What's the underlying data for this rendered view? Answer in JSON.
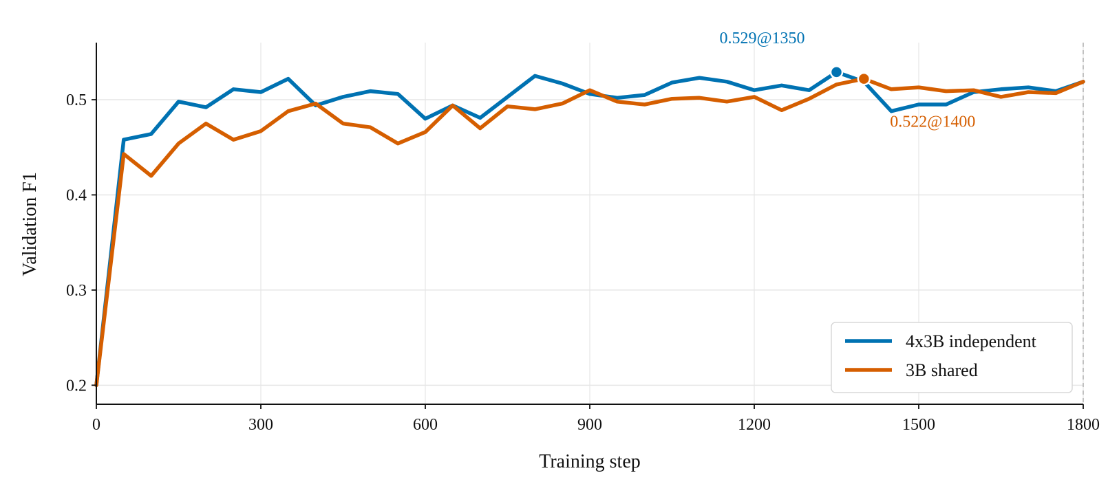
{
  "chart_data": {
    "type": "line",
    "xlabel": "Training step",
    "ylabel": "Validation F1",
    "xlim": [
      0,
      1800
    ],
    "ylim": [
      0.18,
      0.56
    ],
    "xticks": [
      0,
      300,
      600,
      900,
      1200,
      1500,
      1800
    ],
    "xtick_labels": [
      "0",
      "300",
      "600",
      "900",
      "1200",
      "1500",
      "1800"
    ],
    "yticks": [
      0.2,
      0.3,
      0.4,
      0.5
    ],
    "ytick_labels": [
      "0.2",
      "0.3",
      "0.4",
      "0.5"
    ],
    "grid": true,
    "legend_position": "bottom-right",
    "x": [
      0,
      50,
      100,
      150,
      200,
      250,
      300,
      350,
      400,
      450,
      500,
      550,
      600,
      650,
      700,
      750,
      800,
      850,
      900,
      950,
      1000,
      1050,
      1100,
      1150,
      1200,
      1250,
      1300,
      1350,
      1400,
      1450,
      1500,
      1550,
      1600,
      1650,
      1700,
      1750,
      1800
    ],
    "series": [
      {
        "name": "4x3B independent",
        "color": "#0072B2",
        "values": [
          0.2,
          0.458,
          0.464,
          0.498,
          0.492,
          0.511,
          0.508,
          0.522,
          0.494,
          0.503,
          0.509,
          0.506,
          0.48,
          0.494,
          0.481,
          0.503,
          0.525,
          0.517,
          0.506,
          0.502,
          0.505,
          0.518,
          0.523,
          0.519,
          0.51,
          0.515,
          0.51,
          0.529,
          0.519,
          0.488,
          0.495,
          0.495,
          0.508,
          0.511,
          0.513,
          0.509,
          0.519
        ]
      },
      {
        "name": "3B shared",
        "color": "#D55E00",
        "values": [
          0.2,
          0.443,
          0.42,
          0.454,
          0.475,
          0.458,
          0.467,
          0.488,
          0.496,
          0.475,
          0.471,
          0.454,
          0.466,
          0.494,
          0.47,
          0.493,
          0.49,
          0.496,
          0.51,
          0.498,
          0.495,
          0.501,
          0.502,
          0.498,
          0.503,
          0.489,
          0.501,
          0.516,
          0.522,
          0.511,
          0.513,
          0.509,
          0.51,
          0.503,
          0.508,
          0.507,
          0.519
        ]
      }
    ],
    "annotations": [
      {
        "series": 0,
        "x": 1350,
        "y": 0.529,
        "text": "0.529@1350",
        "color": "#0072B2"
      },
      {
        "series": 1,
        "x": 1400,
        "y": 0.522,
        "text": "0.522@1400",
        "color": "#D55E00"
      }
    ],
    "vline": {
      "x": 1800,
      "style": "dashed",
      "color": "#b0b0b0"
    }
  }
}
